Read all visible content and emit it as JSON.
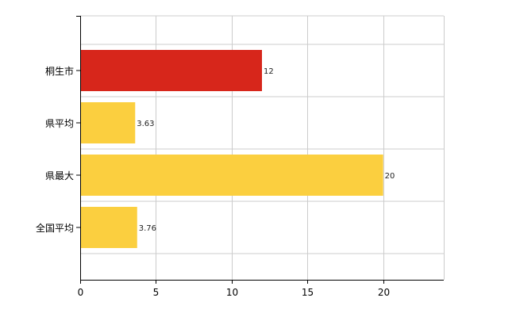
{
  "chart_data": {
    "type": "bar",
    "orientation": "horizontal",
    "categories": [
      "桐生市",
      "県平均",
      "県最大",
      "全国平均"
    ],
    "values": [
      12,
      3.63,
      20,
      3.76
    ],
    "data_labels": [
      "12",
      "3.63",
      "20",
      "3.76"
    ],
    "bar_colors": [
      "#d7261b",
      "#fbcf3f",
      "#fbcf3f",
      "#fbcf3f"
    ],
    "xlim": [
      0,
      24
    ],
    "xticks": [
      0,
      5,
      10,
      15,
      20
    ],
    "xtick_labels": [
      "0",
      "5",
      "10",
      "15",
      "20"
    ],
    "grid": true,
    "gridline_color": "#cccccc",
    "title": "",
    "xlabel": "",
    "ylabel": ""
  }
}
